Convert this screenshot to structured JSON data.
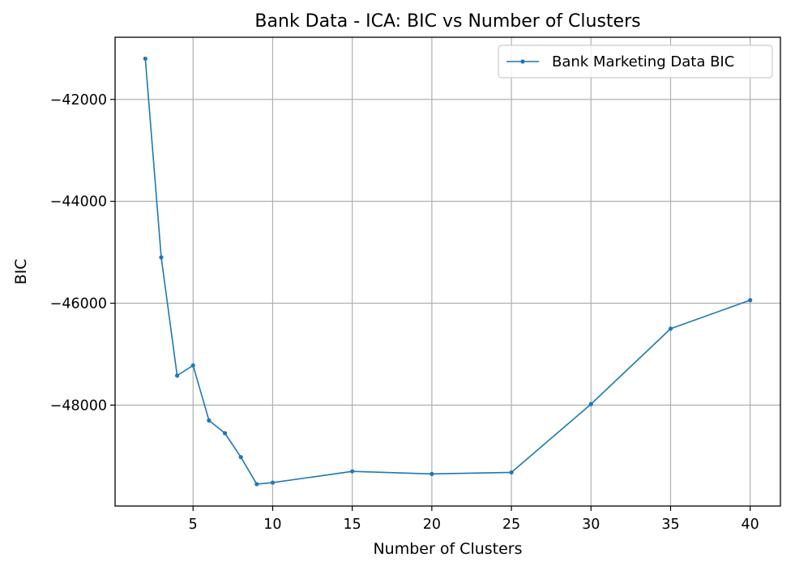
{
  "chart_data": {
    "type": "line",
    "title": "Bank Data - ICA: BIC vs Number of Clusters",
    "xlabel": "Number of Clusters",
    "ylabel": "BIC",
    "xlim": [
      0.1,
      41.9
    ],
    "ylim": [
      -39800,
      -40800
    ],
    "x_ticks": [
      5,
      10,
      15,
      20,
      25,
      30,
      35,
      40
    ],
    "y_ticks": [
      -42000,
      -44000,
      -46000,
      -48000
    ],
    "grid": true,
    "legend_position": "top-right",
    "series": [
      {
        "name": "Bank Marketing Data BIC",
        "color": "#1f77b4",
        "marker": "dot",
        "x": [
          2,
          3,
          4,
          5,
          6,
          7,
          8,
          9,
          10,
          15,
          20,
          25,
          30,
          35,
          40
        ],
        "y": [
          -41200,
          -45100,
          -47420,
          -47220,
          -48300,
          -48550,
          -49020,
          -49550,
          -49520,
          -49300,
          -49350,
          -49320,
          -47980,
          -46500,
          -45940
        ]
      }
    ]
  }
}
